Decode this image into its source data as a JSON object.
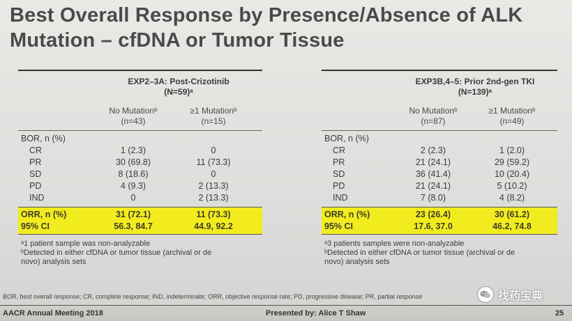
{
  "title": {
    "line1": "Best Overall Response by Presence/Absence of ALK",
    "line2": "Mutation – cfDNA or Tumor Tissue"
  },
  "left": {
    "head1": "EXP2–3A: Post-Crizotinib",
    "head2": "(N=59)ᵃ",
    "col1_name": "No Mutationᵇ",
    "col1_n": "(n=43)",
    "col2_name": "≥1 Mutationᵇ",
    "col2_n": "(n=15)",
    "section": "BOR, n (%)",
    "rows": [
      {
        "label": "CR",
        "v1": "1 (2.3)",
        "v2": "0"
      },
      {
        "label": "PR",
        "v1": "30 (69.8)",
        "v2": "11 (73.3)"
      },
      {
        "label": "SD",
        "v1": "8 (18.6)",
        "v2": "0"
      },
      {
        "label": "PD",
        "v1": "4 (9.3)",
        "v2": "2 (13.3)"
      },
      {
        "label": "IND",
        "v1": "0",
        "v2": "2 (13.3)"
      }
    ],
    "orr": {
      "label": "ORR, n (%)",
      "v1": "31 (72.1)",
      "v2": "11 (73.3)"
    },
    "ci": {
      "label": "95% CI",
      "v1": "56.3, 84.7",
      "v2": "44.9, 92.2"
    },
    "foot1": "ᵃ1 patient sample was non-analyzable",
    "foot2": "ᵇDetected in either cfDNA or tumor tissue (archival or de",
    "foot3": "novo) analysis sets"
  },
  "right": {
    "head1": "EXP3B,4–5: Prior 2nd-gen TKI",
    "head2": "(N=139)ᵃ",
    "col1_name": "No Mutationᵇ",
    "col1_n": "(n=87)",
    "col2_name": "≥1 Mutationᵇ",
    "col2_n": "(n=49)",
    "section": "BOR, n (%)",
    "rows": [
      {
        "label": "CR",
        "v1": "2 (2.3)",
        "v2": "1 (2.0)"
      },
      {
        "label": "PR",
        "v1": "21 (24.1)",
        "v2": "29 (59.2)"
      },
      {
        "label": "SD",
        "v1": "36 (41.4)",
        "v2": "10 (20.4)"
      },
      {
        "label": "PD",
        "v1": "21 (24.1)",
        "v2": "5 (10.2)"
      },
      {
        "label": "IND",
        "v1": "7 (8.0)",
        "v2": "4 (8.2)"
      }
    ],
    "orr": {
      "label": "ORR, n (%)",
      "v1": "23 (26.4)",
      "v2": "30 (61.2)"
    },
    "ci": {
      "label": "95% CI",
      "v1": "17.6, 37.0",
      "v2": "46.2, 74.8"
    },
    "foot1": "ᵃ3 patients samples were non-analyzable",
    "foot2": "ᵇDetected in either cfDNA or tumor tissue (archival or de",
    "foot3": "novo) analysis sets"
  },
  "abbreviations": "BOR, best overall response; CR, complete response; IND, indeterminate; ORR, objective response rate; PD, progressive disease; PR, partial response",
  "footer": {
    "meeting": "AACR Annual Meeting 2018",
    "presenter": "Presented by: Alice T Shaw",
    "page": "25"
  },
  "watermark": {
    "text": "找药宝典",
    "icon": "wechat-icon"
  }
}
